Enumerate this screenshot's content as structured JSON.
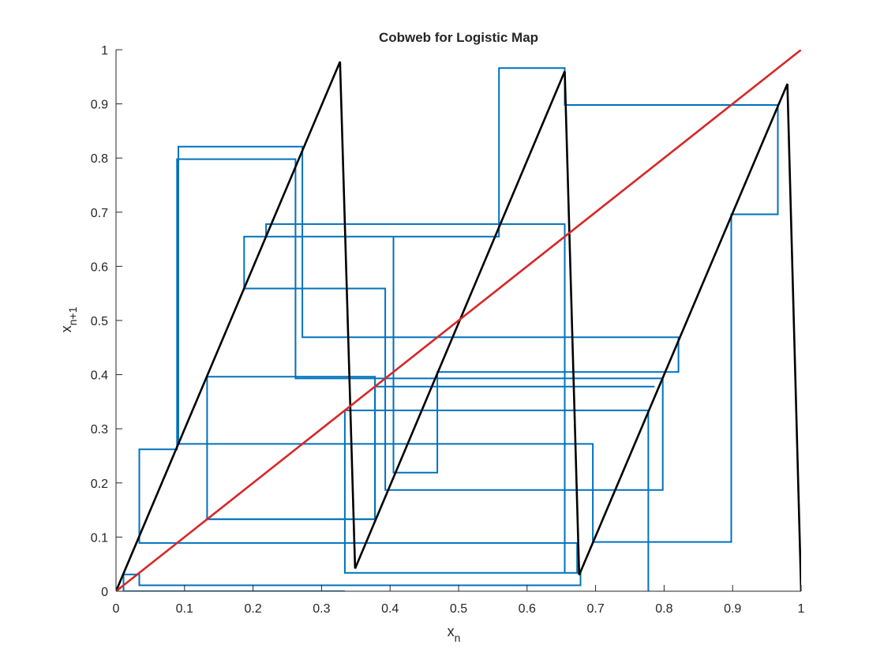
{
  "chart_data": {
    "type": "line",
    "title": "Cobweb for Logistic Map",
    "xlabel": {
      "base": "x",
      "sub": "n"
    },
    "ylabel": {
      "base": "x",
      "sub": "n+1"
    },
    "xlim": [
      0,
      1
    ],
    "ylim": [
      0,
      1
    ],
    "xticks": [
      0,
      0.1,
      0.2,
      0.3,
      0.4,
      0.5,
      0.6,
      0.7,
      0.8,
      0.9,
      1
    ],
    "yticks": [
      0,
      0.1,
      0.2,
      0.3,
      0.4,
      0.5,
      0.6,
      0.7,
      0.8,
      0.9,
      1
    ],
    "xtick_labels": [
      "0",
      "0.1",
      "0.2",
      "0.3",
      "0.4",
      "0.5",
      "0.6",
      "0.7",
      "0.8",
      "0.9",
      "1"
    ],
    "ytick_labels": [
      "0",
      "0.1",
      "0.2",
      "0.3",
      "0.4",
      "0.5",
      "0.6",
      "0.7",
      "0.8",
      "0.9",
      "1"
    ],
    "grid": false,
    "series": [
      {
        "color": "#000000",
        "style": "map",
        "x": [
          0,
          0.327,
          0.349,
          0.655,
          0.676,
          0.98,
          1.0
        ],
        "y": [
          0,
          0.978,
          0.042,
          0.96,
          0.03,
          0.937,
          0
        ]
      },
      {
        "color": "#d62728",
        "style": "identity",
        "x": [
          0,
          1
        ],
        "y": [
          0,
          1
        ]
      },
      {
        "color": "#0072bd",
        "style": "cobweb",
        "x": [
          0.777,
          0.777,
          0.334,
          0.334,
          0.673,
          0.673,
          0.034,
          0.034,
          0.089,
          0.089,
          0.262,
          0.262,
          0.798,
          0.798,
          0.393,
          0.393,
          0.187,
          0.187,
          0.559,
          0.559,
          0.655,
          0.655,
          0.966,
          0.966,
          0.898,
          0.898,
          0.696,
          0.696,
          0.091,
          0.091,
          0.272,
          0.272,
          0.821,
          0.821,
          0.469,
          0.469,
          0.405,
          0.405,
          0.219,
          0.219,
          0.655,
          0.655,
          0.678,
          0.678,
          0.034,
          0.034,
          0.011,
          0.011,
          0.334
        ],
        "y": [
          0,
          0.334,
          0.334,
          0.034,
          0.034,
          0.089,
          0.089,
          0.262,
          0.262,
          0.798,
          0.798,
          0.393,
          0.393,
          0.187,
          0.187,
          0.559,
          0.559,
          0.655,
          0.655,
          0.966,
          0.966,
          0.898,
          0.898,
          0.696,
          0.696,
          0.091,
          0.091,
          0.272,
          0.272,
          0.821,
          0.821,
          0.469,
          0.469,
          0.405,
          0.405,
          0.219,
          0.219,
          0.655,
          0.655,
          0.678,
          0.678,
          0.034,
          0.034,
          0.011,
          0.011,
          0.031,
          0.031,
          0.0,
          0.0
        ]
      },
      {
        "color": "#0072bd",
        "style": "cobweb",
        "x": [
          0.133,
          0.133,
          0.378,
          0.378,
          0.133
        ],
        "y": [
          0.133,
          0.396,
          0.396,
          0.133,
          0.133
        ]
      },
      {
        "color": "#0072bd",
        "style": "cobweb",
        "x": [
          0.786,
          0.786,
          0.378,
          0.378,
          0.131
        ],
        "y": [
          0.378,
          0.378,
          0.378,
          0.133,
          0.133
        ]
      }
    ]
  }
}
